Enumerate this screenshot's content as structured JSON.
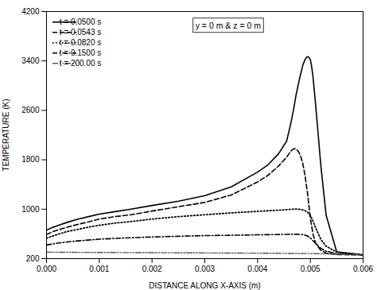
{
  "chart_data": {
    "type": "line",
    "xlabel": "DISTANCE ALONG X-AXIS (m)",
    "ylabel": "TEMPERATURE (K)",
    "xlim": [
      0,
      0.006
    ],
    "ylim": [
      200,
      4200
    ],
    "xticks": [
      {
        "value": 0,
        "label": "0.000"
      },
      0.001,
      0.002,
      0.003,
      0.004,
      0.005,
      0.006
    ],
    "yticks": [
      200,
      1000,
      1800,
      2600,
      3400,
      4200
    ],
    "annotation": "y = 0 m & z = 0 m",
    "grid": false,
    "legend": "top-left",
    "series": [
      {
        "name": "t = 0.0500 s",
        "color": "#000000",
        "line_style": "solid",
        "x": [
          0,
          0.0001,
          0.0002,
          0.0004,
          0.0006,
          0.0008,
          0.001,
          0.0013,
          0.0016,
          0.002,
          0.0025,
          0.003,
          0.0035,
          0.004,
          0.0042,
          0.0044,
          0.00455,
          0.00462,
          0.00468,
          0.00473,
          0.00478,
          0.00482,
          0.00486,
          0.0049,
          0.00493,
          0.00496,
          0.00498,
          0.005,
          0.00502,
          0.00505,
          0.0051,
          0.00515,
          0.0052,
          0.0053,
          0.0055,
          0.006
        ],
        "values": [
          660,
          700,
          730,
          790,
          840,
          880,
          920,
          960,
          1000,
          1060,
          1130,
          1220,
          1360,
          1600,
          1720,
          1900,
          2100,
          2350,
          2600,
          2850,
          3050,
          3200,
          3340,
          3420,
          3460,
          3470,
          3450,
          3420,
          3340,
          3150,
          2700,
          2200,
          1700,
          900,
          310,
          260
        ]
      },
      {
        "name": "t = 0.0543 s",
        "color": "#000000",
        "line_style": "dashed",
        "x": [
          0,
          0.0001,
          0.0002,
          0.0004,
          0.0006,
          0.0008,
          0.001,
          0.0013,
          0.0016,
          0.002,
          0.0025,
          0.003,
          0.0035,
          0.004,
          0.0042,
          0.0044,
          0.00455,
          0.00462,
          0.00467,
          0.0047,
          0.00473,
          0.00476,
          0.00479,
          0.00482,
          0.00486,
          0.0049,
          0.00495,
          0.005,
          0.00505,
          0.0051,
          0.0052,
          0.0053,
          0.0055,
          0.006
        ],
        "values": [
          590,
          630,
          660,
          710,
          755,
          795,
          840,
          880,
          910,
          970,
          1040,
          1110,
          1230,
          1440,
          1550,
          1700,
          1840,
          1930,
          1970,
          1980,
          1970,
          1950,
          1910,
          1850,
          1730,
          1540,
          1240,
          860,
          600,
          450,
          330,
          290,
          265,
          260
        ]
      },
      {
        "name": "t = 0.0820 s",
        "color": "#000000",
        "line_style": "dotted",
        "x": [
          0,
          0.0002,
          0.0004,
          0.0006,
          0.0008,
          0.001,
          0.0013,
          0.0016,
          0.002,
          0.0025,
          0.003,
          0.0035,
          0.004,
          0.0042,
          0.0044,
          0.00455,
          0.0046,
          0.00465,
          0.0047,
          0.00475,
          0.0048,
          0.00485,
          0.0049,
          0.00495,
          0.005,
          0.00505,
          0.0051,
          0.0052,
          0.0053,
          0.0055,
          0.006
        ],
        "values": [
          530,
          590,
          640,
          675,
          710,
          740,
          775,
          800,
          840,
          880,
          910,
          940,
          965,
          975,
          985,
          993,
          997,
          1000,
          1002,
          1001,
          998,
          990,
          977,
          950,
          900,
          810,
          700,
          510,
          400,
          305,
          262
        ]
      },
      {
        "name": "t = 0.1500 s",
        "color": "#000000",
        "line_style": "dashdot",
        "x": [
          0,
          0.0002,
          0.0005,
          0.001,
          0.0015,
          0.002,
          0.0025,
          0.003,
          0.0035,
          0.004,
          0.0042,
          0.0044,
          0.00455,
          0.00465,
          0.00475,
          0.0048,
          0.00485,
          0.0049,
          0.00495,
          0.005,
          0.00505,
          0.0051,
          0.0052,
          0.0053,
          0.0055,
          0.006
        ],
        "values": [
          420,
          450,
          480,
          515,
          535,
          550,
          562,
          572,
          578,
          585,
          588,
          591,
          593,
          595,
          594,
          592,
          588,
          580,
          565,
          535,
          490,
          450,
          365,
          320,
          278,
          260
        ]
      },
      {
        "name": "t = 200.00 s",
        "color": "#555555",
        "line_style": "dashdotdot",
        "x": [
          0,
          0.0005,
          0.001,
          0.0015,
          0.002,
          0.0025,
          0.003,
          0.0035,
          0.004,
          0.0045,
          0.005,
          0.0052,
          0.0055,
          0.006
        ],
        "values": [
          305,
          302,
          300,
          298,
          296,
          294,
          292,
          290,
          288,
          285,
          282,
          278,
          272,
          260
        ]
      }
    ]
  }
}
